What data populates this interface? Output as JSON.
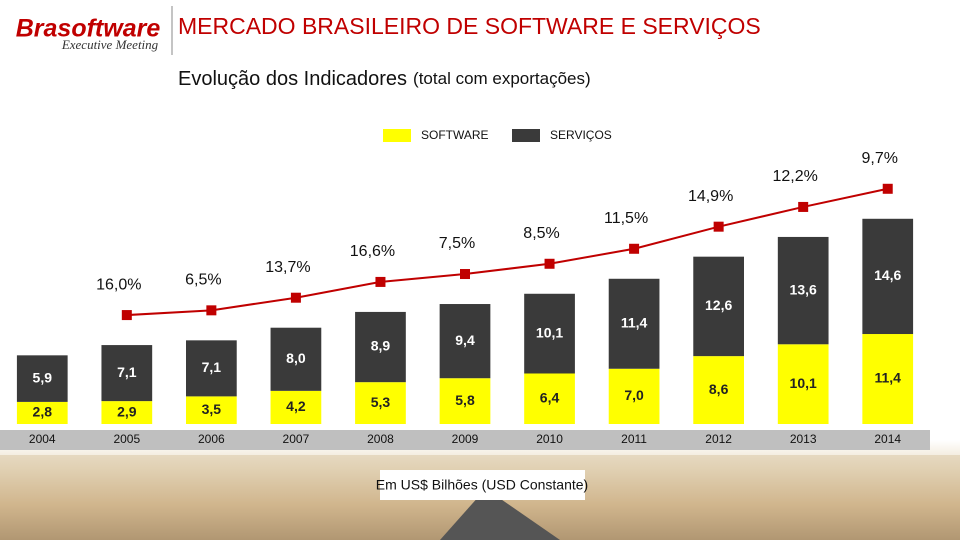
{
  "header": {
    "logo": "Brasoftware",
    "logo_sub": "Executive Meeting",
    "title": "MERCADO BRASILEIRO DE SOFTWARE E SERVIÇOS",
    "subtitle": "Evolução dos Indicadores",
    "subtitle_note": "(total com exportações)"
  },
  "chart_data": {
    "type": "bar",
    "stacked": true,
    "categories": [
      "2004",
      "2005",
      "2006",
      "2007",
      "2008",
      "2009",
      "2010",
      "2011",
      "2012",
      "2013",
      "2014"
    ],
    "series": [
      {
        "name": "SOFTWARE",
        "color": "#ffff00",
        "values": [
          2.8,
          2.9,
          3.5,
          4.2,
          5.3,
          5.8,
          6.4,
          7.0,
          8.6,
          10.1,
          11.4
        ],
        "value_labels": [
          "2,8",
          "2,9",
          "3,5",
          "4,2",
          "5,3",
          "5,8",
          "6,4",
          "7,0",
          "8,6",
          "10,1",
          "11,4"
        ]
      },
      {
        "name": "SERVIÇOS",
        "color": "#3a3a3a",
        "values": [
          5.9,
          7.1,
          7.1,
          8.0,
          8.9,
          9.4,
          10.1,
          11.4,
          12.6,
          13.6,
          14.6
        ],
        "value_labels": [
          "5,9",
          "7,1",
          "7,1",
          "8,0",
          "8,9",
          "9,4",
          "10,1",
          "11,4",
          "12,6",
          "13,6",
          "14,6"
        ]
      }
    ],
    "growth": {
      "color": "#c00000",
      "values": [
        null,
        16.0,
        6.5,
        13.7,
        16.6,
        7.5,
        8.5,
        11.5,
        14.9,
        12.2,
        9.7
      ],
      "value_labels": [
        null,
        "16,0%",
        "6,5%",
        "13,7%",
        "16,6%",
        "7,5%",
        "8,5%",
        "11,5%",
        "14,9%",
        "12,2%",
        "9,7%"
      ]
    },
    "ylim": [
      0,
      28
    ],
    "note": "Em US$ Bilhões (USD Constante)"
  }
}
